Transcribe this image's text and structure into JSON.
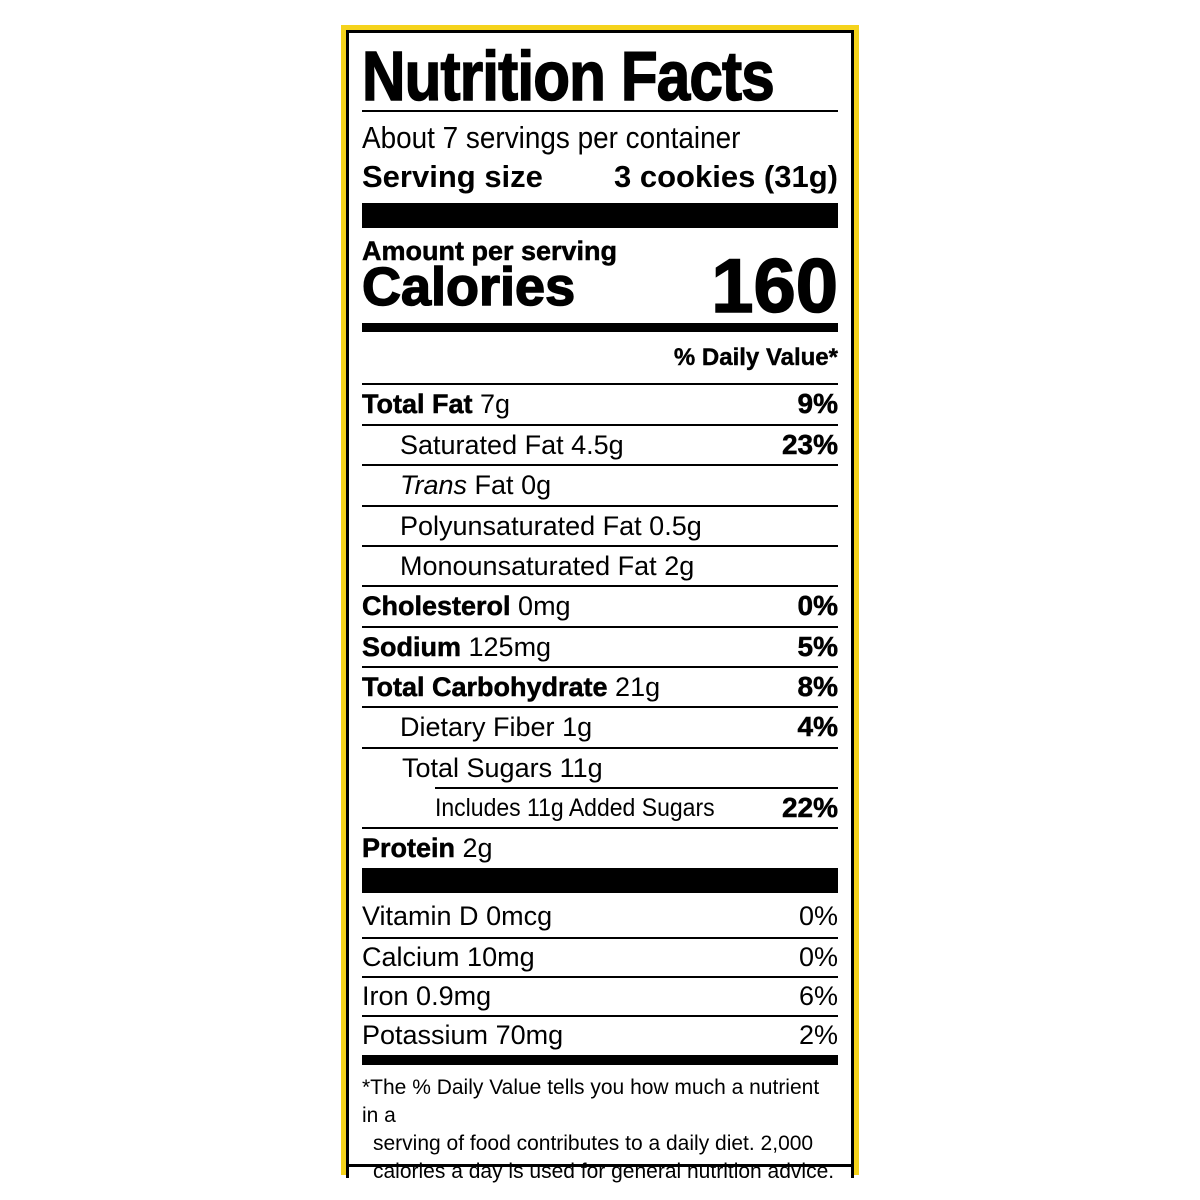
{
  "colors": {
    "border_accent": "#f5d31c",
    "ink": "#000000"
  },
  "title": "Nutrition Facts",
  "servings_per_container": "About 7 servings per container",
  "serving_size": {
    "label": "Serving size",
    "value": "3 cookies (31g)"
  },
  "amount_per_serving": "Amount per serving",
  "calories": {
    "label": "Calories",
    "value": "160"
  },
  "daily_value_header": "% Daily Value*",
  "nutrients": [
    {
      "name": "Total Fat",
      "amount": "7g",
      "dv": "9%"
    },
    {
      "name": "Saturated Fat",
      "amount": "4.5g",
      "dv": "23%"
    },
    {
      "name": "Trans",
      "name_suffix": "Fat",
      "amount": "0g",
      "dv": ""
    },
    {
      "name": "Polyunsaturated Fat",
      "amount": "0.5g",
      "dv": ""
    },
    {
      "name": "Monounsaturated Fat",
      "amount": "2g",
      "dv": ""
    },
    {
      "name": "Cholesterol",
      "amount": "0mg",
      "dv": "0%"
    },
    {
      "name": "Sodium",
      "amount": "125mg",
      "dv": "5%"
    },
    {
      "name": "Total Carbohydrate",
      "amount": "21g",
      "dv": "8%"
    },
    {
      "name": "Dietary Fiber",
      "amount": "1g",
      "dv": "4%"
    },
    {
      "name": "Total Sugars",
      "amount": "11g",
      "dv": ""
    },
    {
      "name": "Includes 11g Added Sugars",
      "amount": "",
      "dv": "22%"
    },
    {
      "name": "Protein",
      "amount": "2g",
      "dv": ""
    }
  ],
  "vitamins": [
    {
      "name": "Vitamin D",
      "amount": "0mcg",
      "dv": "0%"
    },
    {
      "name": "Calcium",
      "amount": "10mg",
      "dv": "0%"
    },
    {
      "name": "Iron",
      "amount": "0.9mg",
      "dv": "6%"
    },
    {
      "name": "Potassium",
      "amount": "70mg",
      "dv": "2%"
    }
  ],
  "footnote": [
    "*The % Daily Value tells you how much a nutrient in a",
    "serving of food contributes to a daily diet. 2,000",
    "calories a day is used for general nutrition advice."
  ]
}
